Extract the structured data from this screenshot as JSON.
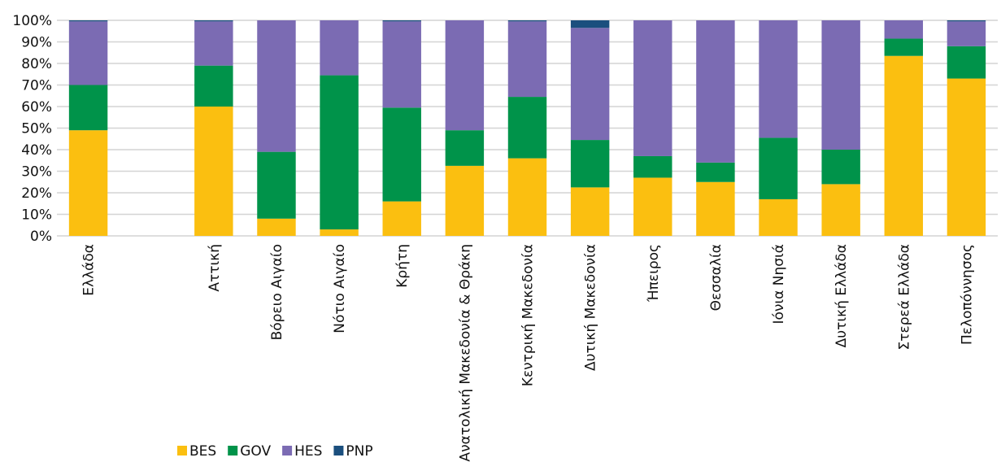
{
  "chart_data": {
    "type": "bar",
    "stacked": true,
    "percent_stacked": true,
    "categories": [
      "Ελλάδα",
      "",
      "Αττική",
      "Βόρειο Αιγαίο",
      "Νότιο Αιγαίο",
      "Κρήτη",
      "Ανατολική Μακεδονία & Θράκη",
      "Κεντρική Μακεδονία",
      "Δυτική Μακεδονία",
      "Ήπειρος",
      "Θεσσαλία",
      "Ιόνια Νησιά",
      "Δυτική Ελλάδα",
      "Στερεά Ελλάδα",
      "Πελοπόννησος"
    ],
    "series": [
      {
        "name": "BES",
        "color": "#FBBF10",
        "values": [
          49,
          null,
          60,
          8,
          3,
          16,
          32.5,
          36,
          22.5,
          27,
          25,
          17,
          24,
          83.5,
          73
        ]
      },
      {
        "name": "GOV",
        "color": "#00934A",
        "values": [
          21,
          null,
          19,
          31,
          71.5,
          43.5,
          16.5,
          28.5,
          22,
          10,
          9,
          28.5,
          16,
          8,
          15
        ]
      },
      {
        "name": "HES",
        "color": "#7B6BB3",
        "values": [
          29.5,
          null,
          20.5,
          61,
          25.5,
          40,
          51,
          35,
          52,
          63,
          66,
          54.5,
          60,
          8.5,
          11.5
        ]
      },
      {
        "name": "PNP",
        "color": "#1B4F7E",
        "values": [
          0.5,
          null,
          0.5,
          0,
          0,
          0.5,
          0,
          0.5,
          3.5,
          0,
          0,
          0,
          0,
          0,
          0.5
        ]
      }
    ],
    "y_tick_labels": [
      "0%",
      "10%",
      "20%",
      "30%",
      "40%",
      "50%",
      "60%",
      "70%",
      "80%",
      "90%",
      "100%"
    ],
    "ylim": [
      0,
      100
    ],
    "grid": true,
    "legend_position": "bottom-left"
  }
}
